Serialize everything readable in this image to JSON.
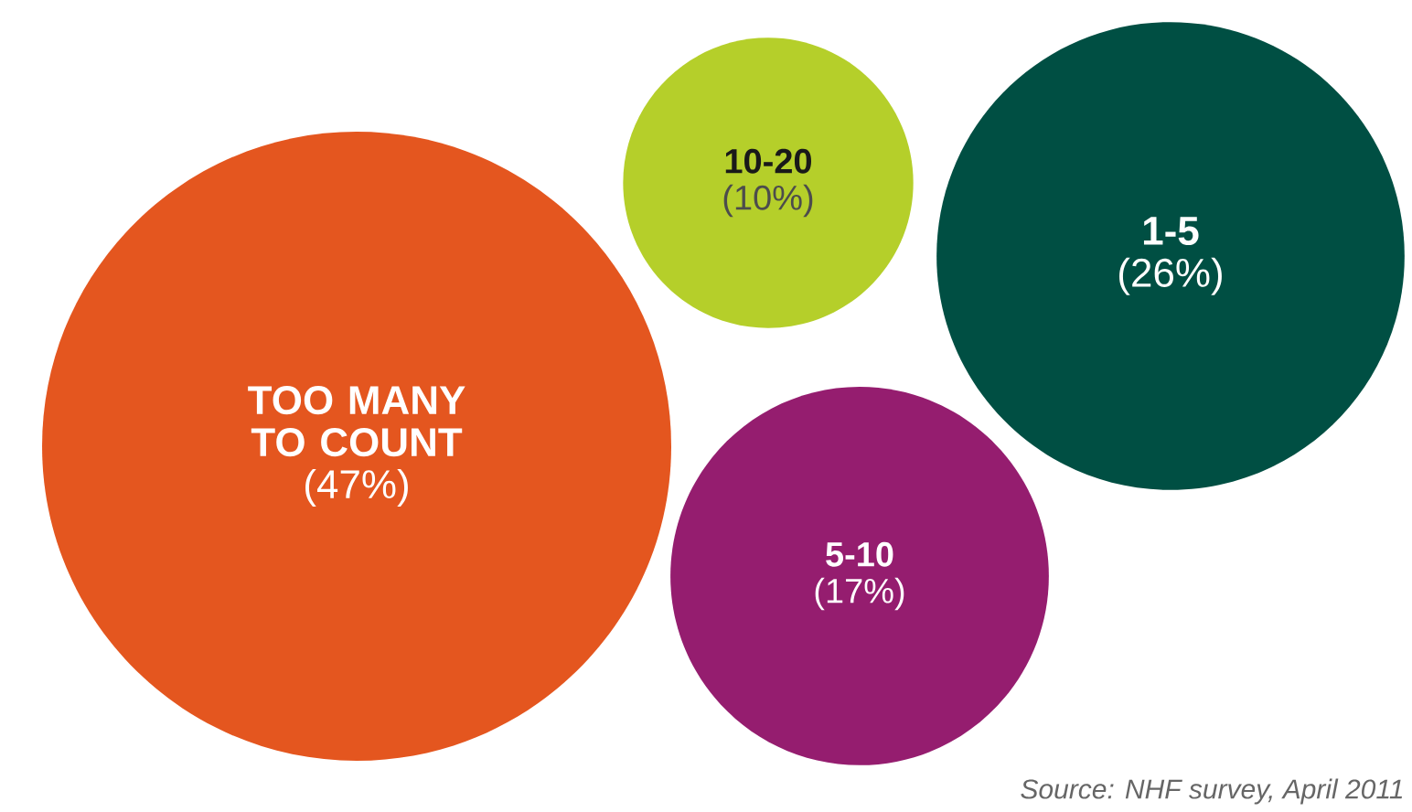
{
  "chart_data": {
    "type": "other",
    "categories": [
      "TOO MANY TO COUNT",
      "1-5",
      "5-10",
      "10-20"
    ],
    "values": [
      47,
      26,
      17,
      10
    ],
    "value_labels": [
      "(47%)",
      "(26%)",
      "(17%)",
      "(10%)"
    ],
    "colors": [
      "#e4561f",
      "#004f43",
      "#951d6f",
      "#b5cf2a"
    ],
    "annotations": [
      "Source: NHF survey, April 2011"
    ]
  }
}
